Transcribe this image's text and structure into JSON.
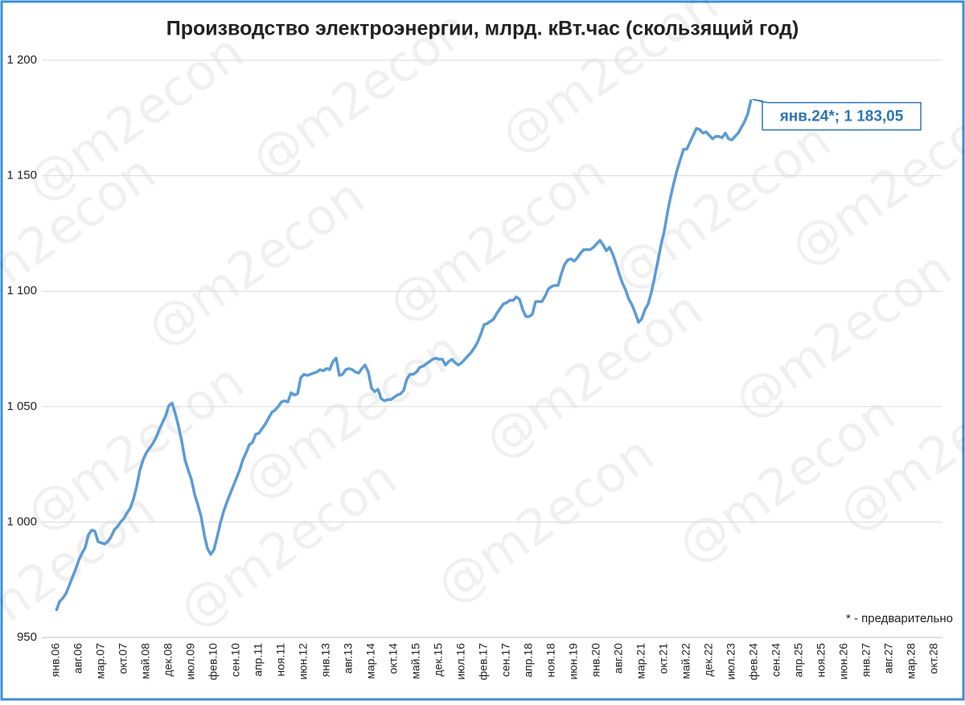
{
  "chart_data": {
    "type": "line",
    "title": "Производство электроэнергии, млрд. кВт.час (скользящий год)",
    "watermark": "@m2econ",
    "annotation": "янв.24*; 1 183,05",
    "footnote": "* - предварительно",
    "ylim": [
      950,
      1200
    ],
    "yticks": [
      950,
      {
        "value": 1000,
        "label": "1 000"
      },
      {
        "value": 1050,
        "label": "1 050"
      },
      {
        "value": 1100,
        "label": "1 100"
      },
      {
        "value": 1150,
        "label": "1 150"
      },
      {
        "value": 1200,
        "label": "1 200"
      }
    ],
    "grid": true,
    "categories": [
      "янв.06",
      null,
      null,
      null,
      null,
      null,
      null,
      "авг.06",
      null,
      null,
      null,
      null,
      null,
      null,
      "мар.07",
      null,
      null,
      null,
      null,
      null,
      null,
      "окт.07",
      null,
      null,
      null,
      null,
      null,
      null,
      "май.08",
      null,
      null,
      null,
      null,
      null,
      null,
      "дек.08",
      null,
      null,
      null,
      null,
      null,
      null,
      "июл.09",
      null,
      null,
      null,
      null,
      null,
      null,
      "фев.10",
      null,
      null,
      null,
      null,
      null,
      null,
      "сен.10",
      null,
      null,
      null,
      null,
      null,
      null,
      "апр.11",
      null,
      null,
      null,
      null,
      null,
      null,
      "ноя.11",
      null,
      null,
      null,
      null,
      null,
      null,
      "июн.12",
      null,
      null,
      null,
      null,
      null,
      null,
      "янв.13",
      null,
      null,
      null,
      null,
      null,
      null,
      "авг.13",
      null,
      null,
      null,
      null,
      null,
      null,
      "мар.14",
      null,
      null,
      null,
      null,
      null,
      null,
      "окт.14",
      null,
      null,
      null,
      null,
      null,
      null,
      "май.15",
      null,
      null,
      null,
      null,
      null,
      null,
      "дек.15",
      null,
      null,
      null,
      null,
      null,
      null,
      "июл.16",
      null,
      null,
      null,
      null,
      null,
      null,
      "фев.17",
      null,
      null,
      null,
      null,
      null,
      null,
      "сен.17",
      null,
      null,
      null,
      null,
      null,
      null,
      "апр.18",
      null,
      null,
      null,
      null,
      null,
      null,
      "ноя.18",
      null,
      null,
      null,
      null,
      null,
      null,
      "июн.19",
      null,
      null,
      null,
      null,
      null,
      null,
      "янв.20",
      null,
      null,
      null,
      null,
      null,
      null,
      "авг.20",
      null,
      null,
      null,
      null,
      null,
      null,
      "мар.21",
      null,
      null,
      null,
      null,
      null,
      null,
      "окт.21",
      null,
      null,
      null,
      null,
      null,
      null,
      "май.22",
      null,
      null,
      null,
      null,
      null,
      null,
      "дек.22",
      null,
      null,
      null,
      null,
      null,
      null,
      "июл.23",
      null,
      null,
      null,
      null,
      null,
      null,
      "фев.24",
      null,
      null,
      null,
      null,
      null,
      null,
      "сен.24",
      null,
      null,
      null,
      null,
      null,
      null,
      "апр.25",
      null,
      null,
      null,
      null,
      null,
      null,
      "ноя.25",
      null,
      null,
      null,
      null,
      null,
      null,
      "июн.26",
      null,
      null,
      null,
      null,
      null,
      null,
      "янв.27",
      null,
      null,
      null,
      null,
      null,
      null,
      "авг.27",
      null,
      null,
      null,
      null,
      null,
      null,
      "мар.28",
      null,
      null,
      null,
      null,
      null,
      null,
      "окт.28",
      null,
      null
    ],
    "series": [
      {
        "name": "Производство электроэнергии",
        "color": "#5b9bd5",
        "values": [
          961.5,
          965.5,
          967,
          969,
          972.5,
          976,
          979.5,
          983.5,
          986.5,
          989,
          994.5,
          996.5,
          996,
          991.5,
          991,
          990.5,
          991.5,
          993.5,
          996.5,
          998,
          1000,
          1001.5,
          1004,
          1006,
          1010,
          1015.5,
          1022.5,
          1027,
          1030,
          1032,
          1034,
          1036.5,
          1040,
          1043,
          1046,
          1050.5,
          1051.5,
          1047,
          1041.5,
          1035,
          1027,
          1022.5,
          1018.5,
          1012,
          1007.5,
          1002.5,
          994.5,
          988.5,
          986,
          988,
          993.5,
          999.5,
          1004.5,
          1008.5,
          1012,
          1015.5,
          1019,
          1022.5,
          1027,
          1030,
          1033.5,
          1034.5,
          1038,
          1038.5,
          1040.5,
          1042.5,
          1045,
          1047.5,
          1048.5,
          1050,
          1052,
          1052.5,
          1052,
          1056,
          1055,
          1055.5,
          1062.5,
          1064,
          1063.5,
          1064,
          1064.5,
          1065,
          1066,
          1065.5,
          1066.5,
          1066,
          1069.5,
          1071,
          1063.5,
          1064,
          1066,
          1066.5,
          1066,
          1065,
          1064.5,
          1066.5,
          1068,
          1065,
          1058,
          1056.5,
          1057.5,
          1053.5,
          1052.5,
          1053,
          1053,
          1054,
          1055,
          1055.5,
          1057,
          1062,
          1064,
          1064,
          1065,
          1067,
          1067.5,
          1068.5,
          1069.5,
          1070.5,
          1071,
          1070.5,
          1070.5,
          1068,
          1069.5,
          1070.5,
          1069,
          1068,
          1069,
          1070.5,
          1072,
          1073.5,
          1075.5,
          1078,
          1081.5,
          1085.5,
          1086,
          1087,
          1088,
          1090.5,
          1092.5,
          1094.5,
          1095,
          1096,
          1096,
          1097.5,
          1096.5,
          1092,
          1089,
          1089,
          1090,
          1095.5,
          1095.5,
          1095.5,
          1098,
          1101,
          1102,
          1102.5,
          1102.5,
          1107.5,
          1111.5,
          1113.5,
          1114,
          1113,
          1114.5,
          1116.5,
          1118,
          1118,
          1118,
          1119,
          1120.5,
          1122,
          1120,
          1117.5,
          1119,
          1116,
          1112,
          1107.5,
          1103.5,
          1100.5,
          1096.5,
          1094,
          1090.5,
          1086.5,
          1088,
          1092,
          1094.5,
          1099.5,
          1106,
          1113,
          1120,
          1126,
          1134,
          1141,
          1147,
          1152.5,
          1157,
          1161.5,
          1161.5,
          1164.5,
          1167.5,
          1170.5,
          1170,
          1168.5,
          1169,
          1167.5,
          1166,
          1167,
          1167,
          1166.5,
          1168.5,
          1166,
          1165.5,
          1167,
          1168.5,
          1171,
          1173.5,
          1177,
          1183.05,
          null,
          null,
          null,
          null,
          null,
          null,
          null,
          null,
          null,
          null,
          null,
          null,
          null,
          null,
          null,
          null,
          null,
          null,
          null,
          null,
          null,
          null,
          null,
          null,
          null,
          null,
          null,
          null,
          null,
          null,
          null,
          null,
          null,
          null,
          null,
          null,
          null,
          null,
          null,
          null,
          null,
          null,
          null,
          null,
          null,
          null,
          null,
          null,
          null,
          null,
          null,
          null,
          null,
          null,
          null,
          null,
          null,
          null,
          null
        ]
      }
    ]
  }
}
